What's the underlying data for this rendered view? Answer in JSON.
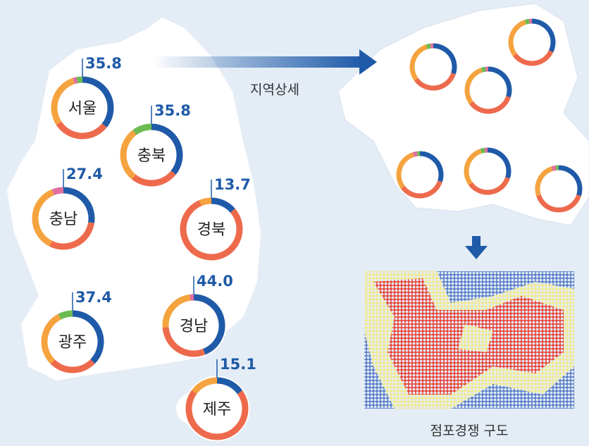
{
  "detail_label": "지역상세",
  "heatmap_label": "점포경쟁 구도",
  "share_color": "#1f5aa8",
  "regions": [
    {
      "label": "서울",
      "value": 35.8,
      "rest": [
        {
          "color": "#ee6a4c",
          "value": 30
        },
        {
          "color": "#f5a33f",
          "value": 29.2
        },
        {
          "color": "#e06fa0",
          "value": 2
        },
        {
          "color": "#6cbb52",
          "value": 3
        }
      ]
    },
    {
      "label": "충북",
      "value": 35.8,
      "rest": [
        {
          "color": "#ee6a4c",
          "value": 25
        },
        {
          "color": "#f5a33f",
          "value": 29
        },
        {
          "color": "#6cbb52",
          "value": 10.2
        }
      ]
    },
    {
      "label": "충남",
      "value": 27.4,
      "rest": [
        {
          "color": "#ee6a4c",
          "value": 30
        },
        {
          "color": "#f5a33f",
          "value": 36.6
        },
        {
          "color": "#e06fa0",
          "value": 6
        }
      ]
    },
    {
      "label": "경북",
      "value": 13.7,
      "rest": [
        {
          "color": "#ee6a4c",
          "value": 80
        },
        {
          "color": "#f5a33f",
          "value": 6.3
        }
      ]
    },
    {
      "label": "광주",
      "value": 37.4,
      "rest": [
        {
          "color": "#ee6a4c",
          "value": 25
        },
        {
          "color": "#f5a33f",
          "value": 30
        },
        {
          "color": "#6cbb52",
          "value": 7.6
        }
      ]
    },
    {
      "label": "경남",
      "value": 44.0,
      "value_label": "44.0",
      "rest": [
        {
          "color": "#ee6a4c",
          "value": 30
        },
        {
          "color": "#f5a33f",
          "value": 24
        },
        {
          "color": "#e06fa0",
          "value": 2
        }
      ]
    },
    {
      "label": "제주",
      "value": 15.1,
      "rest": [
        {
          "color": "#ee6a4c",
          "value": 70
        },
        {
          "color": "#f5a33f",
          "value": 14.9
        }
      ]
    }
  ],
  "detail_donuts": [
    [
      30,
      {
        "color": "#ee6a4c",
        "value": 35
      },
      {
        "color": "#f5a33f",
        "value": 30
      },
      {
        "color": "#6cbb52",
        "value": 3
      },
      {
        "color": "#e06fa0",
        "value": 2
      }
    ],
    [
      32,
      {
        "color": "#ee6a4c",
        "value": 33
      },
      {
        "color": "#f5a33f",
        "value": 30
      },
      {
        "color": "#6cbb52",
        "value": 3
      },
      {
        "color": "#e06fa0",
        "value": 2
      }
    ],
    [
      30,
      {
        "color": "#ee6a4c",
        "value": 35
      },
      {
        "color": "#f5a33f",
        "value": 30
      },
      {
        "color": "#6cbb52",
        "value": 3
      },
      {
        "color": "#e06fa0",
        "value": 2
      }
    ],
    [
      30,
      {
        "color": "#ee6a4c",
        "value": 35
      },
      {
        "color": "#f5a33f",
        "value": 30
      },
      {
        "color": "#e06fa0",
        "value": 3
      },
      {
        "color": "#6cbb52",
        "value": 2
      }
    ],
    [
      30,
      {
        "color": "#ee6a4c",
        "value": 35
      },
      {
        "color": "#f5a33f",
        "value": 30
      },
      {
        "color": "#6cbb52",
        "value": 3
      },
      {
        "color": "#e06fa0",
        "value": 2
      }
    ],
    [
      30,
      {
        "color": "#ee6a4c",
        "value": 40
      },
      {
        "color": "#f5a33f",
        "value": 25
      },
      {
        "color": "#e06fa0",
        "value": 3
      },
      {
        "color": "#6cbb52",
        "value": 2
      }
    ]
  ]
}
